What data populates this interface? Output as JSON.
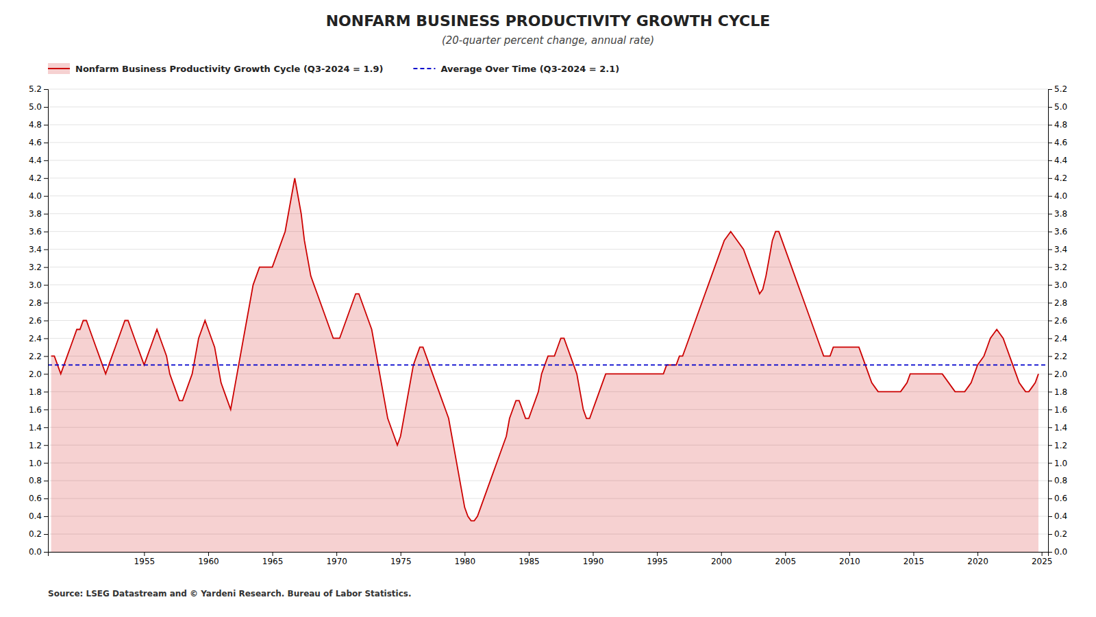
{
  "chart_data": {
    "type": "area",
    "title": "NONFARM BUSINESS PRODUCTIVITY GROWTH CYCLE",
    "subtitle": "(20-quarter percent change, annual rate)",
    "source": "Source: LSEG Datastream and © Yardeni Research. Bureau of Labor Statistics.",
    "grid": true,
    "xlim": [
      1947.5,
      2025.5
    ],
    "xticks": [
      1955,
      1960,
      1965,
      1970,
      1975,
      1980,
      1985,
      1990,
      1995,
      2000,
      2005,
      2010,
      2015,
      2020,
      2025
    ],
    "ylim": [
      0.0,
      5.2
    ],
    "yticks": [
      {
        "value": 0.0,
        "label": "0.0"
      },
      0.2,
      0.4,
      0.6,
      0.8,
      {
        "value": 1.0,
        "label": "1.0"
      },
      1.2,
      1.4,
      1.6,
      1.8,
      {
        "value": 2.0,
        "label": "2.0"
      },
      2.2,
      2.4,
      2.6,
      2.8,
      {
        "value": 3.0,
        "label": "3.0"
      },
      3.2,
      3.4,
      3.6,
      3.8,
      {
        "value": 4.0,
        "label": "4.0"
      },
      4.2,
      4.4,
      4.6,
      4.8,
      {
        "value": 5.0,
        "label": "5.0"
      },
      5.2
    ],
    "y2lim": [
      0.0,
      5.2
    ],
    "y2ticks": [
      {
        "value": 0.0,
        "label": "0.0"
      },
      0.2,
      0.4,
      0.6,
      0.8,
      {
        "value": 1.0,
        "label": "1.0"
      },
      1.2,
      1.4,
      1.6,
      1.8,
      {
        "value": 2.0,
        "label": "2.0"
      },
      2.2,
      2.4,
      2.6,
      2.8,
      {
        "value": 3.0,
        "label": "3.0"
      },
      3.2,
      3.4,
      3.6,
      3.8,
      {
        "value": 4.0,
        "label": "4.0"
      },
      4.2,
      4.4,
      4.6,
      4.8,
      {
        "value": 5.0,
        "label": "5.0"
      },
      5.2
    ],
    "x": [
      1947.75,
      1948.0,
      1948.25,
      1948.5,
      1948.75,
      1949.0,
      1949.25,
      1949.5,
      1949.75,
      1950.0,
      1950.25,
      1950.5,
      1950.75,
      1951.0,
      1951.25,
      1951.5,
      1951.75,
      1952.0,
      1952.25,
      1952.5,
      1952.75,
      1953.0,
      1953.25,
      1953.5,
      1953.75,
      1954.0,
      1954.25,
      1954.5,
      1954.75,
      1955.0,
      1955.25,
      1955.5,
      1955.75,
      1956.0,
      1956.25,
      1956.5,
      1956.75,
      1957.0,
      1957.25,
      1957.5,
      1957.75,
      1958.0,
      1958.25,
      1958.5,
      1958.75,
      1959.0,
      1959.25,
      1959.5,
      1959.75,
      1960.0,
      1960.25,
      1960.5,
      1960.75,
      1961.0,
      1961.25,
      1961.5,
      1961.75,
      1962.0,
      1962.25,
      1962.5,
      1962.75,
      1963.0,
      1963.25,
      1963.5,
      1963.75,
      1964.0,
      1964.25,
      1964.5,
      1964.75,
      1965.0,
      1965.25,
      1965.5,
      1965.75,
      1966.0,
      1966.25,
      1966.5,
      1966.75,
      1967.0,
      1967.25,
      1967.5,
      1967.75,
      1968.0,
      1968.25,
      1968.5,
      1968.75,
      1969.0,
      1969.25,
      1969.5,
      1969.75,
      1970.0,
      1970.25,
      1970.5,
      1970.75,
      1971.0,
      1971.25,
      1971.5,
      1971.75,
      1972.0,
      1972.25,
      1972.5,
      1972.75,
      1973.0,
      1973.25,
      1973.5,
      1973.75,
      1974.0,
      1974.25,
      1974.5,
      1974.75,
      1975.0,
      1975.25,
      1975.5,
      1975.75,
      1976.0,
      1976.25,
      1976.5,
      1976.75,
      1977.0,
      1977.25,
      1977.5,
      1977.75,
      1978.0,
      1978.25,
      1978.5,
      1978.75,
      1979.0,
      1979.25,
      1979.5,
      1979.75,
      1980.0,
      1980.25,
      1980.5,
      1980.75,
      1981.0,
      1981.25,
      1981.5,
      1981.75,
      1982.0,
      1982.25,
      1982.5,
      1982.75,
      1983.0,
      1983.25,
      1983.5,
      1983.75,
      1984.0,
      1984.25,
      1984.5,
      1984.75,
      1985.0,
      1985.25,
      1985.5,
      1985.75,
      1986.0,
      1986.25,
      1986.5,
      1986.75,
      1987.0,
      1987.25,
      1987.5,
      1987.75,
      1988.0,
      1988.25,
      1988.5,
      1988.75,
      1989.0,
      1989.25,
      1989.5,
      1989.75,
      1990.0,
      1990.25,
      1990.5,
      1990.75,
      1991.0,
      1991.25,
      1991.5,
      1991.75,
      1992.0,
      1992.25,
      1992.5,
      1992.75,
      1993.0,
      1993.25,
      1993.5,
      1993.75,
      1994.0,
      1994.25,
      1994.5,
      1994.75,
      1995.0,
      1995.25,
      1995.5,
      1995.75,
      1996.0,
      1996.25,
      1996.5,
      1996.75,
      1997.0,
      1997.25,
      1997.5,
      1997.75,
      1998.0,
      1998.25,
      1998.5,
      1998.75,
      1999.0,
      1999.25,
      1999.5,
      1999.75,
      2000.0,
      2000.25,
      2000.5,
      2000.75,
      2001.0,
      2001.25,
      2001.5,
      2001.75,
      2002.0,
      2002.25,
      2002.5,
      2002.75,
      2003.0,
      2003.25,
      2003.5,
      2003.75,
      2004.0,
      2004.25,
      2004.5,
      2004.75,
      2005.0,
      2005.25,
      2005.5,
      2005.75,
      2006.0,
      2006.25,
      2006.5,
      2006.75,
      2007.0,
      2007.25,
      2007.5,
      2007.75,
      2008.0,
      2008.25,
      2008.5,
      2008.75,
      2009.0,
      2009.25,
      2009.5,
      2009.75,
      2010.0,
      2010.25,
      2010.5,
      2010.75,
      2011.0,
      2011.25,
      2011.5,
      2011.75,
      2012.0,
      2012.25,
      2012.5,
      2012.75,
      2013.0,
      2013.25,
      2013.5,
      2013.75,
      2014.0,
      2014.25,
      2014.5,
      2014.75,
      2015.0,
      2015.25,
      2015.5,
      2015.75,
      2016.0,
      2016.25,
      2016.5,
      2016.75,
      2017.0,
      2017.25,
      2017.5,
      2017.75,
      2018.0,
      2018.25,
      2018.5,
      2018.75,
      2019.0,
      2019.25,
      2019.5,
      2019.75,
      2020.0,
      2020.25,
      2020.5,
      2020.75,
      2021.0,
      2021.25,
      2021.5,
      2021.75,
      2022.0,
      2022.25,
      2022.5,
      2022.75,
      2023.0,
      2023.25,
      2023.5,
      2023.75,
      2024.0,
      2024.25,
      2024.5,
      2024.75
    ],
    "series": [
      {
        "name": "Nonfarm Business Productivity Growth Cycle (Q3-2024 = 1.9)",
        "color": "#cc0000",
        "values": [
          2.2,
          2.2,
          2.1,
          2.0,
          2.1,
          2.2,
          2.3,
          2.4,
          2.5,
          2.5,
          2.6,
          2.6,
          2.5,
          2.4,
          2.3,
          2.2,
          2.1,
          2.0,
          2.1,
          2.2,
          2.3,
          2.4,
          2.5,
          2.6,
          2.6,
          2.5,
          2.4,
          2.3,
          2.2,
          2.1,
          2.2,
          2.3,
          2.4,
          2.5,
          2.4,
          2.3,
          2.2,
          2.0,
          1.9,
          1.8,
          1.7,
          1.7,
          1.8,
          1.9,
          2.0,
          2.2,
          2.4,
          2.5,
          2.6,
          2.5,
          2.4,
          2.3,
          2.1,
          1.9,
          1.8,
          1.7,
          1.6,
          1.8,
          2.0,
          2.2,
          2.4,
          2.6,
          2.8,
          3.0,
          3.1,
          3.2,
          3.2,
          3.2,
          3.2,
          3.2,
          3.3,
          3.4,
          3.5,
          3.6,
          3.8,
          4.0,
          4.2,
          4.0,
          3.8,
          3.5,
          3.3,
          3.1,
          3.0,
          2.9,
          2.8,
          2.7,
          2.6,
          2.5,
          2.4,
          2.4,
          2.4,
          2.5,
          2.6,
          2.7,
          2.8,
          2.9,
          2.9,
          2.8,
          2.7,
          2.6,
          2.5,
          2.3,
          2.1,
          1.9,
          1.7,
          1.5,
          1.4,
          1.3,
          1.2,
          1.3,
          1.5,
          1.7,
          1.9,
          2.1,
          2.2,
          2.3,
          2.3,
          2.2,
          2.1,
          2.0,
          1.9,
          1.8,
          1.7,
          1.6,
          1.5,
          1.3,
          1.1,
          0.9,
          0.7,
          0.5,
          0.4,
          0.35,
          0.35,
          0.4,
          0.5,
          0.6,
          0.7,
          0.8,
          0.9,
          1.0,
          1.1,
          1.2,
          1.3,
          1.5,
          1.6,
          1.7,
          1.7,
          1.6,
          1.5,
          1.5,
          1.6,
          1.7,
          1.8,
          2.0,
          2.1,
          2.2,
          2.2,
          2.2,
          2.3,
          2.4,
          2.4,
          2.3,
          2.2,
          2.1,
          2.0,
          1.8,
          1.6,
          1.5,
          1.5,
          1.6,
          1.7,
          1.8,
          1.9,
          2.0,
          2.0,
          2.0,
          2.0,
          2.0,
          2.0,
          2.0,
          2.0,
          2.0,
          2.0,
          2.0,
          2.0,
          2.0,
          2.0,
          2.0,
          2.0,
          2.0,
          2.0,
          2.0,
          2.1,
          2.1,
          2.1,
          2.1,
          2.2,
          2.2,
          2.3,
          2.4,
          2.5,
          2.6,
          2.7,
          2.8,
          2.9,
          3.0,
          3.1,
          3.2,
          3.3,
          3.4,
          3.5,
          3.55,
          3.6,
          3.55,
          3.5,
          3.45,
          3.4,
          3.3,
          3.2,
          3.1,
          3.0,
          2.9,
          2.95,
          3.1,
          3.3,
          3.5,
          3.6,
          3.6,
          3.5,
          3.4,
          3.3,
          3.2,
          3.1,
          3.0,
          2.9,
          2.8,
          2.7,
          2.6,
          2.5,
          2.4,
          2.3,
          2.2,
          2.2,
          2.2,
          2.3,
          2.3,
          2.3,
          2.3,
          2.3,
          2.3,
          2.3,
          2.3,
          2.3,
          2.2,
          2.1,
          2.0,
          1.9,
          1.85,
          1.8,
          1.8,
          1.8,
          1.8,
          1.8,
          1.8,
          1.8,
          1.8,
          1.85,
          1.9,
          2.0,
          2.0,
          2.0,
          2.0,
          2.0,
          2.0,
          2.0,
          2.0,
          2.0,
          2.0,
          2.0,
          1.95,
          1.9,
          1.85,
          1.8,
          1.8,
          1.8,
          1.8,
          1.85,
          1.9,
          2.0,
          2.1,
          2.15,
          2.2,
          2.3,
          2.4,
          2.45,
          2.5,
          2.45,
          2.4,
          2.3,
          2.2,
          2.1,
          2.0,
          1.9,
          1.85,
          1.8,
          1.8,
          1.85,
          1.9,
          2.0
        ]
      }
    ],
    "reference_lines": [
      {
        "name": "Average Over Time (Q3-2024 = 2.1)",
        "value": 2.1,
        "color": "#0000cc",
        "line_style": "dashed"
      }
    ]
  }
}
